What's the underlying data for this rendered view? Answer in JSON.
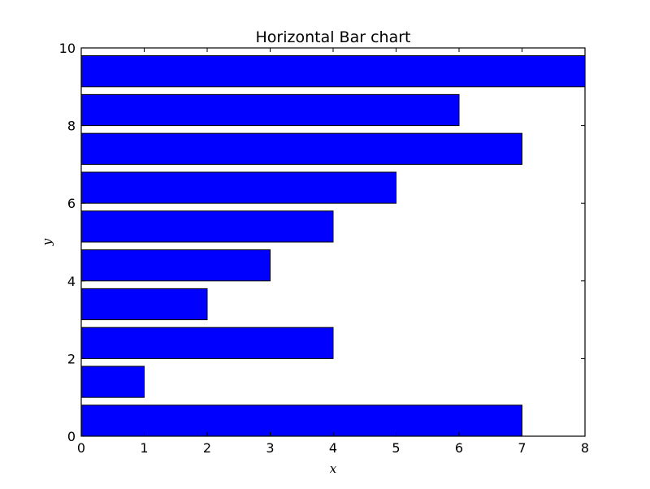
{
  "chart_data": {
    "type": "bar",
    "orientation": "horizontal",
    "title": "Horizontal Bar chart",
    "xlabel": "x",
    "ylabel": "y",
    "xlim": [
      0,
      8
    ],
    "ylim": [
      0,
      10
    ],
    "bar_color": "#0000ff",
    "bar_edge_color": "#000000",
    "x_ticks": [
      0,
      1,
      2,
      3,
      4,
      5,
      6,
      7,
      8
    ],
    "y_ticks": [
      0,
      2,
      4,
      6,
      8,
      10
    ],
    "bar_height": 0.8,
    "series": [
      {
        "y": [
          0,
          1,
          2,
          3,
          4,
          5,
          6,
          7,
          8,
          9
        ],
        "values": [
          7,
          1,
          4,
          2,
          3,
          4,
          5,
          7,
          6,
          8
        ]
      }
    ],
    "grid": false,
    "legend": "none"
  }
}
